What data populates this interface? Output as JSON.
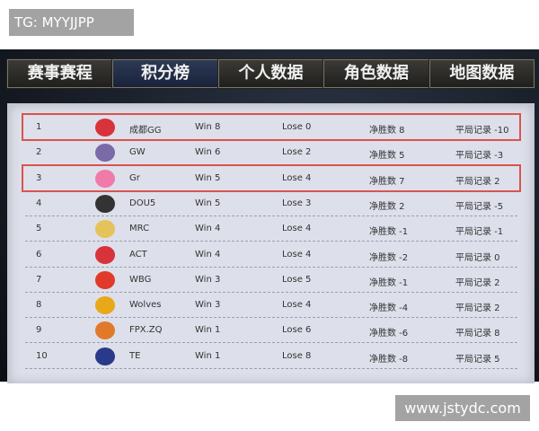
{
  "overlay_label": "TG: MYYJJPP",
  "watermark": "www.jstydc.com",
  "tabs": [
    {
      "label": "赛事赛程"
    },
    {
      "label": "积分榜",
      "active": true
    },
    {
      "label": "个人数据"
    },
    {
      "label": "角色数据"
    },
    {
      "label": "地图数据"
    }
  ],
  "highlight_color": "#d9534f",
  "rows": [
    {
      "rank": "1",
      "team": "成都GG",
      "win": "Win 8",
      "lose": "Lose 0",
      "net": "净胜数 8",
      "draw": "平局记录 -10",
      "logo_color": "#d8323a",
      "highlighted": true
    },
    {
      "rank": "2",
      "team": "GW",
      "win": "Win 6",
      "lose": "Lose 2",
      "net": "净胜数 5",
      "draw": "平局记录 -3",
      "logo_color": "#7a6aa8"
    },
    {
      "rank": "3",
      "team": "Gr",
      "win": "Win 5",
      "lose": "Lose 4",
      "net": "净胜数 7",
      "draw": "平局记录 2",
      "logo_color": "#f07aa8",
      "highlighted": true
    },
    {
      "rank": "4",
      "team": "DOU5",
      "win": "Win 5",
      "lose": "Lose 3",
      "net": "净胜数 2",
      "draw": "平局记录 -5",
      "logo_color": "#333333"
    },
    {
      "rank": "5",
      "team": "MRC",
      "win": "Win 4",
      "lose": "Lose 4",
      "net": "净胜数 -1",
      "draw": "平局记录 -1",
      "logo_color": "#e6c25a"
    },
    {
      "rank": "6",
      "team": "ACT",
      "win": "Win 4",
      "lose": "Lose 4",
      "net": "净胜数 -2",
      "draw": "平局记录 0",
      "logo_color": "#d8323a"
    },
    {
      "rank": "7",
      "team": "WBG",
      "win": "Win 3",
      "lose": "Lose 5",
      "net": "净胜数 -1",
      "draw": "平局记录 2",
      "logo_color": "#e03a2a"
    },
    {
      "rank": "8",
      "team": "Wolves",
      "win": "Win 3",
      "lose": "Lose 4",
      "net": "净胜数 -4",
      "draw": "平局记录 2",
      "logo_color": "#e8a818"
    },
    {
      "rank": "9",
      "team": "FPX.ZQ",
      "win": "Win 1",
      "lose": "Lose 6",
      "net": "净胜数 -6",
      "draw": "平局记录 8",
      "logo_color": "#e07a2a"
    },
    {
      "rank": "10",
      "team": "TE",
      "win": "Win 1",
      "lose": "Lose 8",
      "net": "净胜数 -8",
      "draw": "平局记录 5",
      "logo_color": "#2a3a8a"
    }
  ]
}
